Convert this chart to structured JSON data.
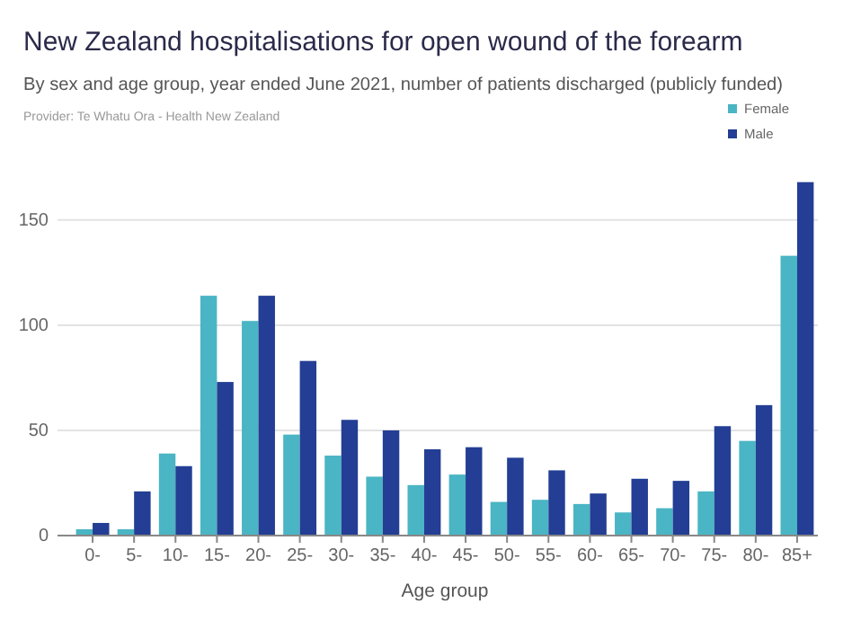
{
  "chart_data": {
    "type": "bar",
    "title": "New Zealand hospitalisations for open wound of the forearm",
    "subtitle": "By sex and age group, year ended June 2021, number of patients discharged (publicly funded)",
    "annotations": [
      "Provider: Te Whatu Ora - Health New Zealand"
    ],
    "xlabel": "Age group",
    "categories": [
      "0-",
      "5-",
      "10-",
      "15-",
      "20-",
      "25-",
      "30-",
      "35-",
      "40-",
      "45-",
      "50-",
      "55-",
      "60-",
      "65-",
      "70-",
      "75-",
      "80-",
      "85+"
    ],
    "series": [
      {
        "name": "Female",
        "color": "#4ab5c4",
        "values": [
          3,
          3,
          39,
          114,
          102,
          48,
          38,
          28,
          24,
          29,
          16,
          17,
          15,
          11,
          13,
          21,
          45,
          133
        ]
      },
      {
        "name": "Male",
        "color": "#233e94",
        "values": [
          6,
          21,
          33,
          73,
          114,
          83,
          55,
          50,
          41,
          42,
          37,
          31,
          20,
          27,
          26,
          52,
          62,
          168
        ]
      }
    ],
    "ylim": [
      0,
      170
    ],
    "yticks": [
      0,
      50,
      100,
      150
    ],
    "grid": "y",
    "legend": "top right"
  }
}
